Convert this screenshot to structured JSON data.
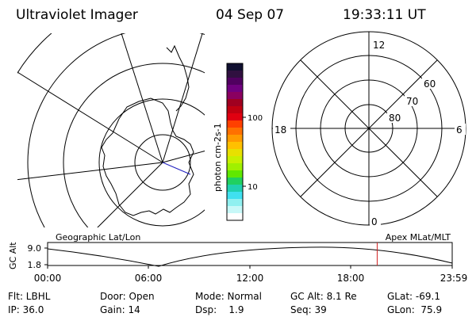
{
  "header": {
    "title": "Ultraviolet Imager",
    "date": "04 Sep 07",
    "time": "19:33:11 UT"
  },
  "colorbar": {
    "label": "photon cm-2s-1",
    "ticks": [
      "100",
      "10"
    ],
    "colors": [
      "#101030",
      "#301040",
      "#500060",
      "#700080",
      "#8a0060",
      "#a00020",
      "#c00010",
      "#e00010",
      "#ff4000",
      "#ff7000",
      "#ff9a00",
      "#ffc000",
      "#e8e000",
      "#c8f000",
      "#a0f000",
      "#60e800",
      "#20d060",
      "#20d0b0",
      "#40e0f0",
      "#90f0f0",
      "#c8f8f8",
      "#ffffff"
    ]
  },
  "polar_grid": {
    "mlt_labels": {
      "top": "12",
      "bottom": "0",
      "left": "18",
      "right": "6"
    },
    "lat_labels": [
      "60",
      "70",
      "80"
    ]
  },
  "altitude_strip": {
    "axis_title": "GC Alt",
    "y_ticks": [
      "9.0",
      "1.8"
    ],
    "left_label": "Geographic Lat/Lon",
    "right_label": "Apex MLat/MLT",
    "x_ticks": [
      "00:00",
      "06:00",
      "12:00",
      "18:00",
      "23:59"
    ],
    "current_time_marker_hours": 19.55,
    "marker_color": "#d02020"
  },
  "footer": {
    "flt": "Flt: LBHL",
    "ip": "IP: 36.0",
    "door": "Door: Open",
    "gain": "Gain: 14",
    "mode": "Mode: Normal",
    "dsp": "Dsp:    1.9",
    "gc_alt": "GC Alt: 8.1 Re",
    "seq": "Seq: 39",
    "glat": "GLat: -69.1",
    "glon": "GLon:  75.9"
  }
}
